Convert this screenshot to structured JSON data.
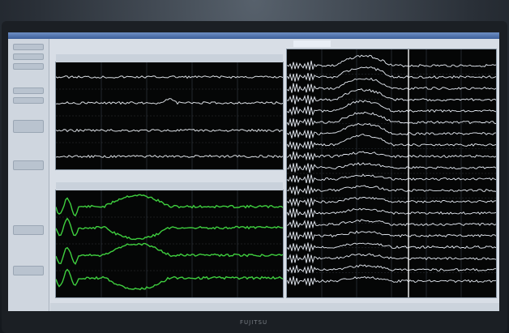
{
  "window": {
    "title": "",
    "tab_label": ""
  },
  "brand": "FUJITSU",
  "colors": {
    "trace_white": "#d9dde2",
    "trace_green": "#3fcf3f",
    "trace_blue_white": "#e8edf5",
    "cursor_line": "#f5f5f5",
    "panel_bg": "#050606"
  },
  "panels": {
    "top_left": {
      "label": "",
      "channel_labels": [
        "",
        "",
        "",
        ""
      ]
    },
    "bottom_left": {
      "label": "",
      "channel_labels": [
        "",
        "",
        "",
        ""
      ]
    },
    "right": {
      "label": "",
      "channel_labels": []
    }
  },
  "sidebar": {
    "items": [
      "",
      "",
      "",
      "",
      "",
      "",
      ""
    ]
  },
  "statusbar": {
    "text": ""
  }
}
